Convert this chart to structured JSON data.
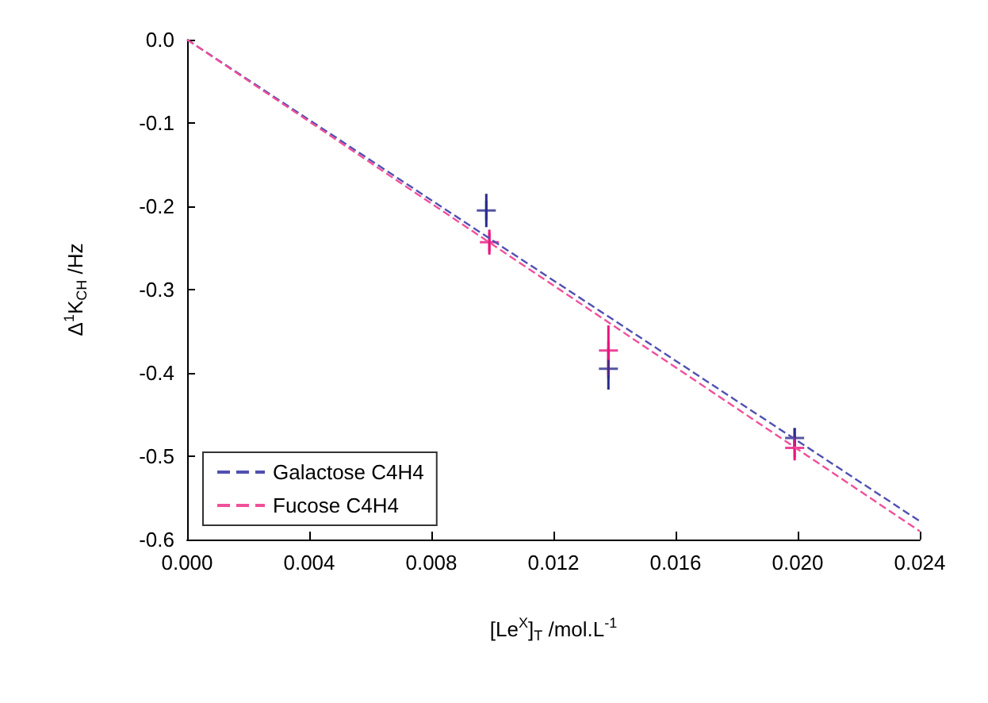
{
  "chart_data": {
    "type": "scatter",
    "xlabel": "[Le$^{X}$]$_{T}$ /mol.L$^{-1}$",
    "ylabel": "Δ$^{1}$K$_{CH}$ /Hz",
    "xlim": [
      0,
      0.024
    ],
    "xticks": [
      {
        "value": 0,
        "label": "0.000"
      },
      {
        "value": 0.004,
        "label": "0.004"
      },
      {
        "value": 0.008,
        "label": "0.008"
      },
      {
        "value": 0.012,
        "label": "0.012"
      },
      {
        "value": 0.016,
        "label": "0.016"
      },
      {
        "value": 0.02,
        "label": "0.020"
      },
      {
        "value": 0.024,
        "label": "0.024"
      }
    ],
    "ylim": [
      -0.6,
      0
    ],
    "yticks": [
      {
        "value": -0.6,
        "label": "-0.6"
      },
      {
        "value": -0.5,
        "label": "-0.5"
      },
      {
        "value": -0.4,
        "label": "-0.4"
      },
      {
        "value": -0.3,
        "label": "-0.3"
      },
      {
        "value": -0.2,
        "label": "-0.2"
      },
      {
        "value": -0.1,
        "label": "-0.1"
      },
      {
        "value": 0,
        "label": "0.0"
      }
    ],
    "grid": false,
    "legend": "bottom left",
    "marker": "cross",
    "series": [
      {
        "name": "Galactose C4H4",
        "type": "line",
        "color": "#5050b0",
        "line_style": "dashed",
        "marker": "none",
        "x": [
          0,
          0.024
        ],
        "values": [
          0,
          -0.578
        ]
      },
      {
        "name": "Fucose C4H4",
        "type": "line",
        "color": "#f0509a",
        "line_style": "dashed",
        "marker": "none",
        "x": [
          0,
          0.024
        ],
        "values": [
          0,
          -0.59
        ]
      },
      {
        "color": "#2a2a8c",
        "x": [
          0.0098,
          0.0138,
          0.0199
        ],
        "values": [
          -0.205,
          -0.395,
          -0.478
        ],
        "errors": [
          0.02,
          0.025,
          0.012
        ]
      },
      {
        "color": "#e8157e",
        "x": [
          0.0099,
          0.0138,
          0.0199
        ],
        "values": [
          -0.243,
          -0.373,
          -0.49
        ],
        "errors": [
          0.015,
          0.03,
          0.015
        ]
      }
    ]
  }
}
